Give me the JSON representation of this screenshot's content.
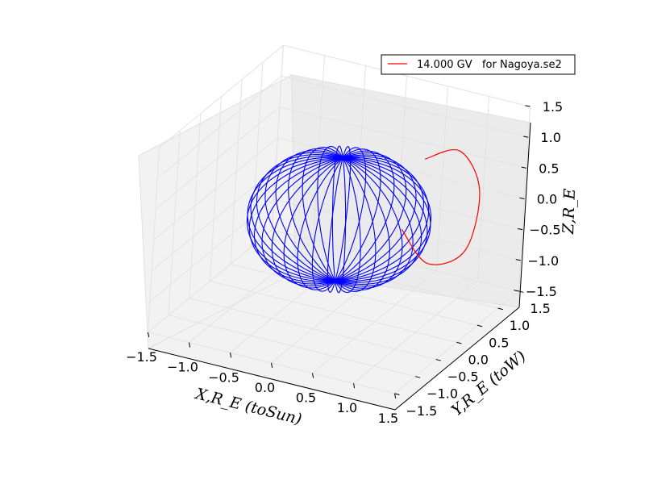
{
  "chart_data": {
    "type": "line3d",
    "legend": {
      "placement": "top-right",
      "entries": [
        {
          "label": "14.000 GV   for Nagoya.se2",
          "color": "#ff0000"
        }
      ]
    },
    "axes": {
      "x": {
        "label": "X,R_E (toSun)",
        "ticks": [
          "−1.5",
          "−1.0",
          "−0.5",
          "0.0",
          "0.5",
          "1.0",
          "1.5"
        ],
        "lim": [
          -1.5,
          1.5
        ]
      },
      "y": {
        "label": "Y,R_E (toW)",
        "ticks": [
          "−1.5",
          "−1.0",
          "−0.5",
          "0.0",
          "0.5",
          "1.0",
          "1.5"
        ],
        "lim": [
          -1.5,
          1.5
        ]
      },
      "z": {
        "label": "Z,R_E",
        "ticks": [
          "−1.5",
          "−1.0",
          "−0.5",
          "0.0",
          "0.5",
          "1.0",
          "1.5"
        ],
        "lim": [
          -1.5,
          1.5
        ]
      }
    },
    "grid": true,
    "series": [
      {
        "kind": "wireframe-sphere",
        "radius": 1.0,
        "meridians": 36,
        "color": "#0000ff"
      },
      {
        "kind": "trajectory",
        "color": "#ff0000",
        "points": [
          [
            0.5,
            0.55,
            -0.3
          ],
          [
            0.6,
            1.05,
            -1.1
          ],
          [
            0.9,
            1.35,
            -0.95
          ],
          [
            1.05,
            1.3,
            0.1
          ],
          [
            0.95,
            0.95,
            0.9
          ],
          [
            0.75,
            0.5,
            0.95
          ]
        ]
      }
    ]
  }
}
